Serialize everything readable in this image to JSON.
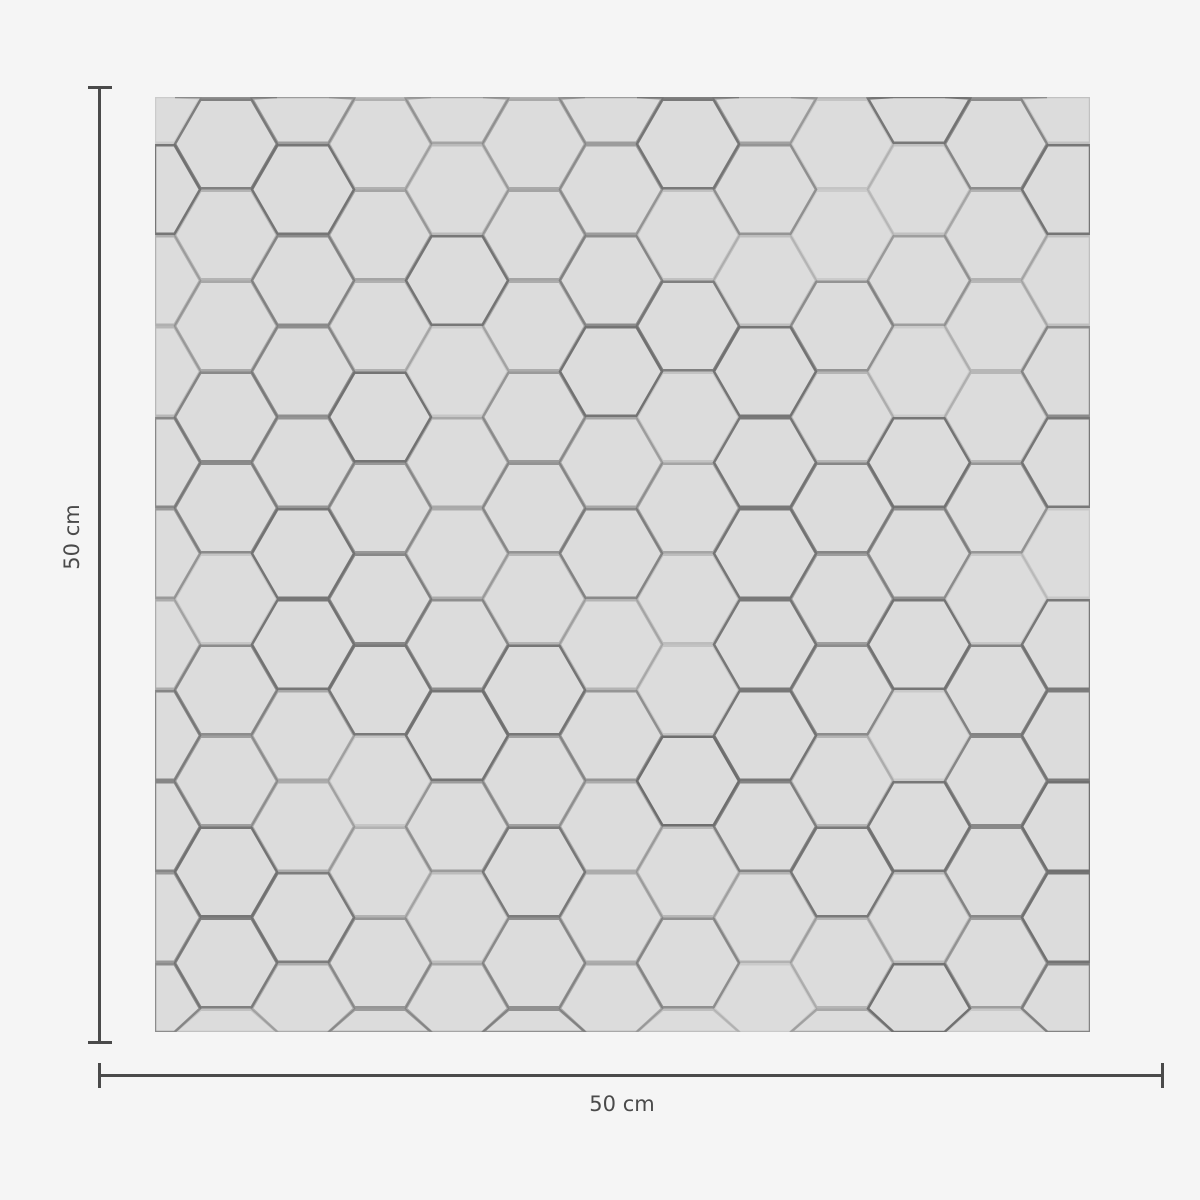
{
  "product": {
    "pattern": "hexagon",
    "colors": {
      "background": "#f5f5f5",
      "sample": "#dcdcdc",
      "hex_line": "#6e6e6e",
      "dimension_line": "#4a4a4a"
    }
  },
  "dimensions": {
    "height_label": "50 cm",
    "width_label": "50 cm"
  }
}
